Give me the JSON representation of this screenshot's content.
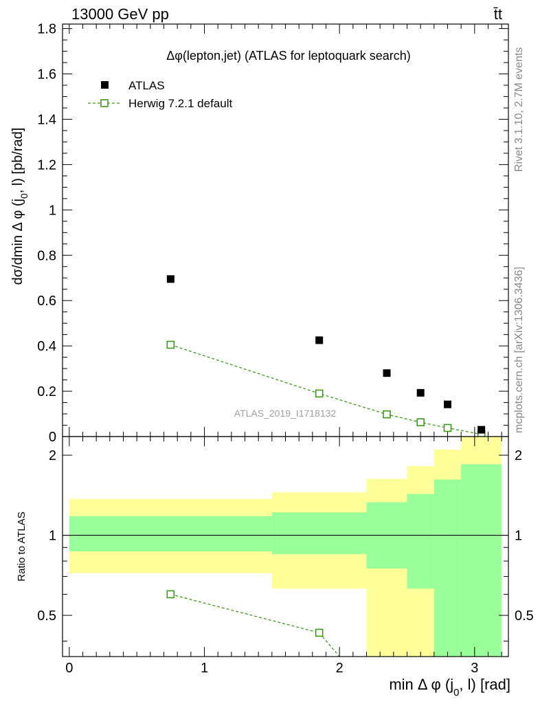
{
  "header": {
    "left": "13000 GeV pp",
    "right": "t̄t"
  },
  "side_labels": {
    "rivet": "Rivet 3.1.10,  2.7M events",
    "mcplots": "mcplots.cern.ch [arXiv:1306.3436]"
  },
  "watermark": "ATLAS_2019_I1718132",
  "chart_data": [
    {
      "type": "scatter",
      "title": "Δφ(lepton,jet) (ATLAS for leptoquark search)",
      "ylabel": "dσ/dmin Δ φ (j0, l) [pb/rad]",
      "ylim": [
        0,
        1.82
      ],
      "xlim": [
        -0.05,
        3.25
      ],
      "grid": false,
      "legend_position": "top-left",
      "y_ticks": [
        "0",
        "0.2",
        "0.4",
        "0.6",
        "0.8",
        "1",
        "1.2",
        "1.4",
        "1.6",
        "1.8"
      ],
      "y_tick_values": [
        0,
        0.2,
        0.4,
        0.6,
        0.8,
        1.0,
        1.2,
        1.4,
        1.6,
        1.8
      ],
      "series": [
        {
          "name": "ATLAS",
          "color": "#000000",
          "marker": "filled-square",
          "x": [
            0.75,
            1.85,
            2.35,
            2.6,
            2.8,
            3.05
          ],
          "y": [
            0.695,
            0.425,
            0.28,
            0.193,
            0.142,
            0.03
          ]
        },
        {
          "name": "Herwig 7.2.1 default",
          "color": "#3a9a16",
          "marker": "open-square",
          "line": "dashed",
          "x": [
            0.75,
            1.85,
            2.35,
            2.6,
            2.8,
            3.05
          ],
          "y": [
            0.405,
            0.19,
            0.098,
            0.063,
            0.038,
            0.01
          ]
        }
      ]
    },
    {
      "type": "area",
      "ylabel": "Ratio to ATLAS",
      "xlabel": "min Δ φ (j0, l) [rad]",
      "ylim": [
        0.35,
        2.35
      ],
      "xlim": [
        -0.05,
        3.25
      ],
      "grid": false,
      "y_ticks": [
        "0.5",
        "1",
        "2"
      ],
      "y_tick_values": [
        0.5,
        1,
        2
      ],
      "x_ticks": [
        "0",
        "1",
        "2",
        "3"
      ],
      "x_tick_values": [
        0,
        1,
        2,
        3
      ],
      "reference_line": 1,
      "bins": [
        {
          "lo": 0.0,
          "hi": 1.5,
          "green": [
            0.87,
            1.18
          ],
          "yellow": [
            0.72,
            1.37
          ]
        },
        {
          "lo": 1.5,
          "hi": 2.2,
          "green": [
            0.85,
            1.22
          ],
          "yellow": [
            0.63,
            1.45
          ]
        },
        {
          "lo": 2.2,
          "hi": 2.5,
          "green": [
            0.75,
            1.33
          ],
          "yellow": [
            0.2,
            1.63
          ]
        },
        {
          "lo": 2.5,
          "hi": 2.7,
          "green": [
            0.63,
            1.43
          ],
          "yellow": [
            0.2,
            1.82
          ]
        },
        {
          "lo": 2.7,
          "hi": 2.9,
          "green": [
            0.2,
            1.62
          ],
          "yellow": [
            0.2,
            2.1
          ]
        },
        {
          "lo": 2.9,
          "hi": 3.2,
          "green": [
            0.2,
            1.85
          ],
          "yellow": [
            0.2,
            2.6
          ]
        }
      ],
      "series": [
        {
          "name": "Herwig 7.2.1 default",
          "color": "#3a9a16",
          "marker": "open-square",
          "line": "dashed",
          "x": [
            0.75,
            1.85,
            2.0
          ],
          "y": [
            0.6,
            0.43,
            0.35
          ]
        }
      ]
    }
  ]
}
